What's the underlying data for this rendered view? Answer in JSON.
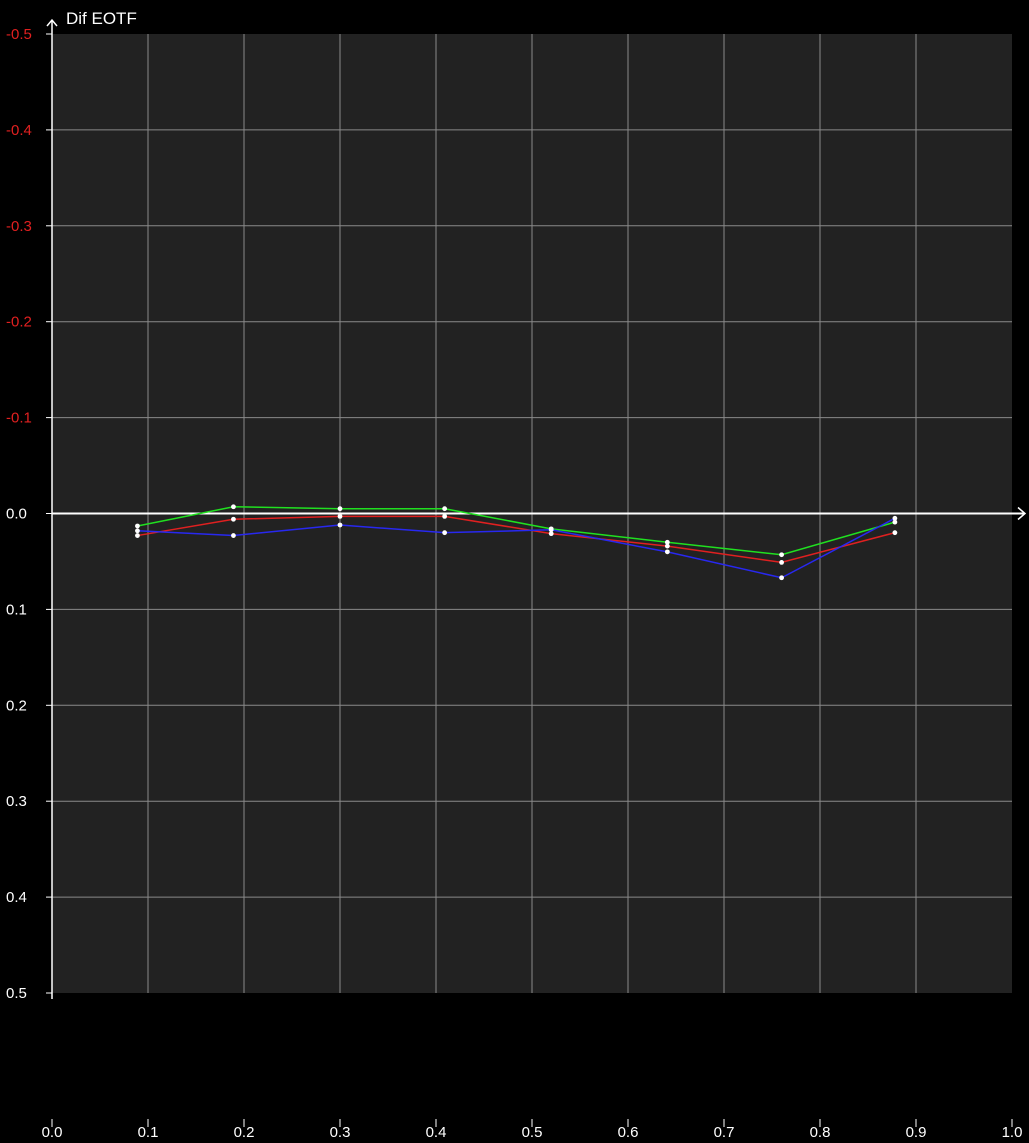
{
  "chart_data": {
    "type": "line",
    "title": "",
    "ylabel": "Dif EOTF",
    "xlabel": "",
    "xlim": [
      0.0,
      1.0
    ],
    "ylim": [
      -0.5,
      0.5
    ],
    "y_axis_inverted": true,
    "x_ticks": [
      "0.0",
      "0.1",
      "0.2",
      "0.3",
      "0.4",
      "0.5",
      "0.6",
      "0.7",
      "0.8",
      "0.9",
      "1.0"
    ],
    "y_ticks": [
      {
        "value": -0.5,
        "label": "-0.5"
      },
      {
        "value": -0.4,
        "label": "-0.4"
      },
      {
        "value": -0.3,
        "label": "-0.3"
      },
      {
        "value": -0.2,
        "label": "-0.2"
      },
      {
        "value": -0.1,
        "label": "-0.1"
      },
      {
        "value": 0.0,
        "label": "0.0"
      },
      {
        "value": 0.1,
        "label": "0.1"
      },
      {
        "value": 0.2,
        "label": "0.2"
      },
      {
        "value": 0.3,
        "label": "0.3"
      },
      {
        "value": 0.4,
        "label": "0.4"
      },
      {
        "value": 0.5,
        "label": "0.5"
      }
    ],
    "grid": true,
    "colors": {
      "background": "#000000",
      "plot_area": "#222222",
      "grid": "#8a8a8a",
      "axis": "#ffffff",
      "negative_tick": "#e02020",
      "positive_tick": "#ffffff",
      "marker": "#ffffff"
    },
    "series": [
      {
        "color": "#e02020",
        "x": [
          0.089,
          0.189,
          0.3,
          0.409,
          0.52,
          0.641,
          0.76,
          0.878
        ],
        "y": [
          0.023,
          0.006,
          0.003,
          0.003,
          0.021,
          0.034,
          0.051,
          0.02
        ]
      },
      {
        "color": "#20e020",
        "x": [
          0.089,
          0.189,
          0.3,
          0.409,
          0.52,
          0.641,
          0.76,
          0.878
        ],
        "y": [
          0.013,
          -0.007,
          -0.005,
          -0.005,
          0.016,
          0.03,
          0.043,
          0.009
        ]
      },
      {
        "color": "#2828f0",
        "x": [
          0.089,
          0.189,
          0.3,
          0.409,
          0.52,
          0.641,
          0.76,
          0.878
        ],
        "y": [
          0.018,
          0.023,
          0.012,
          0.02,
          0.017,
          0.04,
          0.067,
          0.005
        ]
      }
    ]
  }
}
